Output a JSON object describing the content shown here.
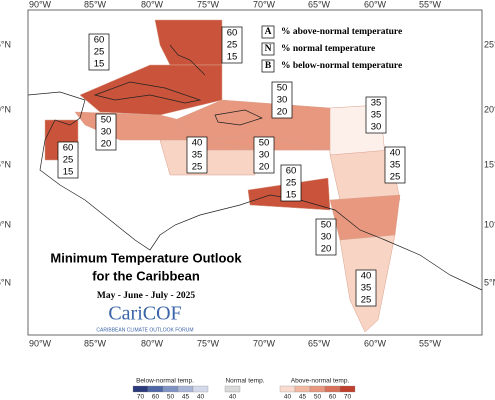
{
  "map": {
    "lon_labels": [
      "90°W",
      "85°W",
      "80°W",
      "75°W",
      "70°W",
      "65°W",
      "60°W",
      "55°W"
    ],
    "lat_labels": [
      "25°N",
      "20°N",
      "15°N",
      "10°N",
      "5°N"
    ],
    "legend": [
      {
        "key": "A",
        "text": "% above-normal temperature"
      },
      {
        "key": "N",
        "text": "% normal temperature"
      },
      {
        "key": "B",
        "text": "% below-normal temperature"
      }
    ],
    "title": [
      "Minimum Temperature Outlook",
      "for the Caribbean"
    ],
    "period": "May - June - July - 2025",
    "logo": "CariCOF",
    "logo_sub": "CARIBBEAN CLIMATE OUTLOOK FORUM",
    "regions": [
      {
        "above": 60,
        "normal": 25,
        "below": 15
      },
      {
        "above": 60,
        "normal": 25,
        "below": 15
      },
      {
        "above": 50,
        "normal": 30,
        "below": 20
      },
      {
        "above": 60,
        "normal": 25,
        "below": 15
      },
      {
        "above": 50,
        "normal": 30,
        "below": 20
      },
      {
        "above": 40,
        "normal": 35,
        "below": 25
      },
      {
        "above": 50,
        "normal": 30,
        "below": 20
      },
      {
        "above": 35,
        "normal": 35,
        "below": 30
      },
      {
        "above": 40,
        "normal": 35,
        "below": 25
      },
      {
        "above": 60,
        "normal": 25,
        "below": 15
      },
      {
        "above": 50,
        "normal": 30,
        "below": 20
      },
      {
        "above": 40,
        "normal": 35,
        "below": 25
      }
    ],
    "colorbar": {
      "below": {
        "label": "Below-normal temp.",
        "ticks": [
          70,
          60,
          50,
          45,
          40
        ]
      },
      "normal": {
        "label": "Normal temp.",
        "ticks": [
          40
        ]
      },
      "above": {
        "label": "Above-normal temp.",
        "ticks": [
          40,
          45,
          50,
          60,
          70
        ]
      }
    }
  }
}
